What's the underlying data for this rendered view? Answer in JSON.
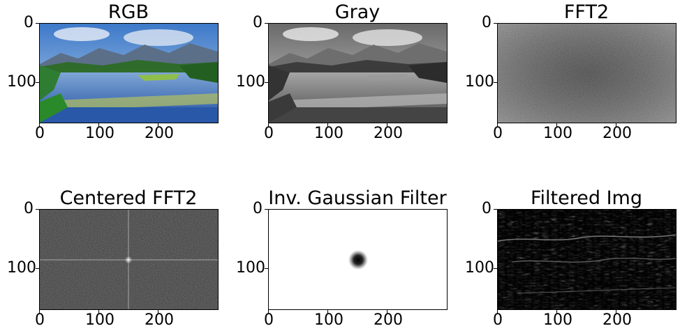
{
  "chart_data": [
    {
      "type": "image",
      "title": "RGB",
      "image": "rgb-landscape",
      "xlim": [
        0,
        300
      ],
      "ylim": [
        170,
        0
      ],
      "xticks": [
        0,
        100,
        200
      ],
      "yticks": [
        0,
        100
      ]
    },
    {
      "type": "image",
      "title": "Gray",
      "image": "grayscale-landscape",
      "xlim": [
        0,
        300
      ],
      "ylim": [
        170,
        0
      ],
      "xticks": [
        0,
        100,
        200
      ],
      "yticks": [
        0,
        100
      ]
    },
    {
      "type": "image",
      "title": "FFT2",
      "image": "fft-magnitude-spectrum",
      "xlim": [
        0,
        300
      ],
      "ylim": [
        170,
        0
      ],
      "xticks": [
        0,
        100,
        200
      ],
      "yticks": [
        0,
        100
      ]
    },
    {
      "type": "image",
      "title": "Centered FFT2",
      "image": "centered-fft-spectrum",
      "xlim": [
        0,
        300
      ],
      "ylim": [
        170,
        0
      ],
      "xticks": [
        0,
        100,
        200
      ],
      "yticks": [
        0,
        100
      ]
    },
    {
      "type": "image",
      "title": "Inv. Gaussian Filter",
      "image": "inverse-gaussian-filter",
      "xlim": [
        0,
        300
      ],
      "ylim": [
        170,
        0
      ],
      "xticks": [
        0,
        100,
        200
      ],
      "yticks": [
        0,
        100
      ],
      "filter_center": [
        150,
        85
      ]
    },
    {
      "type": "image",
      "title": "Filtered Img",
      "image": "high-pass-filtered-edges",
      "xlim": [
        0,
        300
      ],
      "ylim": [
        170,
        0
      ],
      "xticks": [
        0,
        100,
        200
      ],
      "yticks": [
        0,
        100
      ]
    }
  ]
}
